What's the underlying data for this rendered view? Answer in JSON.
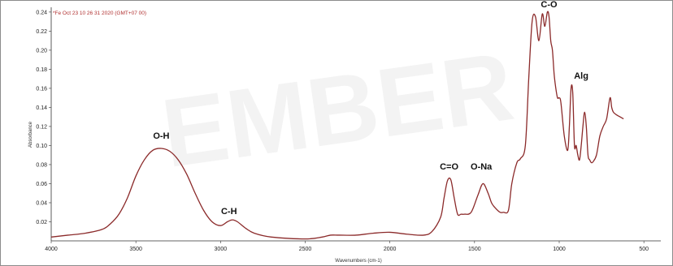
{
  "chart_data": {
    "type": "line",
    "header": "*Fe Oct 23 10 26 31 2020 (GMT+07 00)",
    "xlabel": "Wavenumbers (cm-1)",
    "ylabel": "Absorbance",
    "watermark": "EMBER",
    "x_reversed": true,
    "xlim": [
      4000,
      400
    ],
    "ylim": [
      0.0,
      0.245
    ],
    "x_ticks": [
      4000,
      3500,
      3000,
      2500,
      2000,
      1500,
      1000,
      500
    ],
    "x_tick_labels": [
      "4000",
      "3500",
      "3000",
      "2500",
      "2000",
      "1500",
      "1000",
      "500"
    ],
    "y_ticks": [
      0.02,
      0.04,
      0.06,
      0.08,
      0.1,
      0.12,
      0.14,
      0.16,
      0.18,
      0.2,
      0.22,
      0.24
    ],
    "y_tick_labels": [
      "0.02",
      "0.04",
      "0.06",
      "0.08",
      "0.10",
      "0.12",
      "0.14",
      "0.16",
      "0.18",
      "0.20",
      "0.22",
      "0.24"
    ],
    "grid": false,
    "line_color": "#8b2a2a",
    "series": [
      {
        "x": [
          4000,
          3900,
          3800,
          3700,
          3650,
          3600,
          3550,
          3500,
          3450,
          3400,
          3350,
          3300,
          3250,
          3200,
          3150,
          3100,
          3050,
          3000,
          2960,
          2930,
          2900,
          2850,
          2800,
          2700,
          2500,
          2400,
          2350,
          2300,
          2200,
          2100,
          2000,
          1900,
          1800,
          1750,
          1700,
          1680,
          1660,
          1640,
          1620,
          1600,
          1580,
          1560,
          1520,
          1480,
          1450,
          1420,
          1400,
          1380,
          1350,
          1330,
          1300,
          1280,
          1250,
          1230,
          1200,
          1180,
          1160,
          1140,
          1120,
          1100,
          1085,
          1070,
          1060,
          1050,
          1040,
          1030,
          1020,
          1010,
          1000,
          990,
          970,
          950,
          940,
          930,
          920,
          910,
          900,
          890,
          880,
          870,
          860,
          850,
          840,
          830,
          820,
          810,
          800,
          780,
          760,
          740,
          720,
          700,
          690,
          680,
          660,
          640,
          620
        ],
        "y": [
          0.004,
          0.006,
          0.008,
          0.012,
          0.018,
          0.028,
          0.045,
          0.068,
          0.085,
          0.095,
          0.097,
          0.094,
          0.085,
          0.07,
          0.05,
          0.032,
          0.02,
          0.016,
          0.02,
          0.022,
          0.02,
          0.013,
          0.008,
          0.004,
          0.002,
          0.004,
          0.006,
          0.006,
          0.006,
          0.008,
          0.009,
          0.007,
          0.006,
          0.01,
          0.025,
          0.045,
          0.063,
          0.064,
          0.045,
          0.028,
          0.028,
          0.028,
          0.03,
          0.048,
          0.06,
          0.05,
          0.04,
          0.035,
          0.03,
          0.03,
          0.032,
          0.06,
          0.082,
          0.086,
          0.1,
          0.17,
          0.23,
          0.235,
          0.21,
          0.238,
          0.225,
          0.24,
          0.235,
          0.21,
          0.2,
          0.175,
          0.16,
          0.15,
          0.15,
          0.145,
          0.11,
          0.095,
          0.12,
          0.16,
          0.155,
          0.1,
          0.1,
          0.09,
          0.085,
          0.1,
          0.12,
          0.135,
          0.12,
          0.09,
          0.085,
          0.082,
          0.083,
          0.09,
          0.11,
          0.12,
          0.128,
          0.15,
          0.14,
          0.135,
          0.132,
          0.13,
          0.128
        ]
      }
    ],
    "annotations": [
      {
        "text": "O-H",
        "x": 3350,
        "y": 0.107
      },
      {
        "text": "C-H",
        "x": 2950,
        "y": 0.028
      },
      {
        "text": "C=O",
        "x": 1650,
        "y": 0.075
      },
      {
        "text": "O-Na",
        "x": 1460,
        "y": 0.075
      },
      {
        "text": "C-O",
        "x": 1060,
        "y": 0.245
      },
      {
        "text": "Alg",
        "x": 870,
        "y": 0.17
      }
    ]
  }
}
